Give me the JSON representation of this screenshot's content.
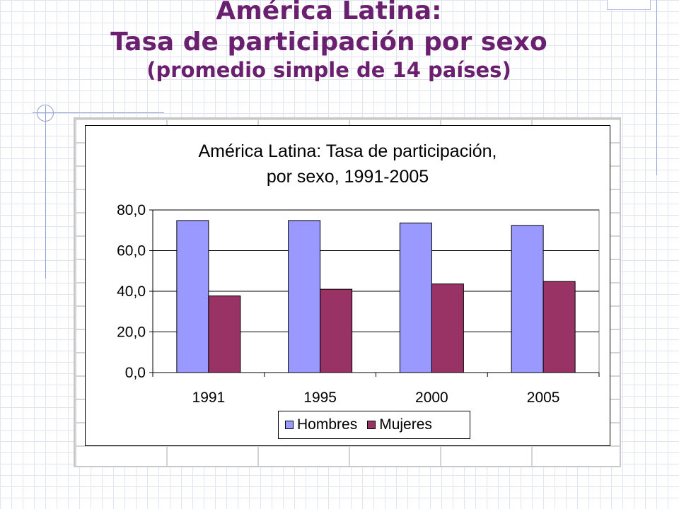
{
  "slide": {
    "title_line1": "América Latina:",
    "title_line2": "Tasa de participación por sexo",
    "title_line3": "(promedio simple de 14 países)"
  },
  "colors": {
    "title": "#6b1f6f",
    "hombres": "#9999ff",
    "mujeres": "#993366",
    "decor": "#8fa0d8"
  },
  "chart_data": {
    "type": "bar",
    "title_line1": "América Latina: Tasa de participación,",
    "title_line2": "por sexo, 1991-2005",
    "categories": [
      "1991",
      "1995",
      "2000",
      "2005"
    ],
    "series": [
      {
        "name": "Hombres",
        "values": [
          74.8,
          74.8,
          73.6,
          72.4
        ]
      },
      {
        "name": "Mujeres",
        "values": [
          37.7,
          41.0,
          43.6,
          44.8
        ]
      }
    ],
    "ylim": [
      0,
      80
    ],
    "yticks": [
      "0,0",
      "20,0",
      "40,0",
      "60,0",
      "80,0"
    ],
    "ytick_values": [
      0,
      20,
      40,
      60,
      80
    ],
    "grid": true,
    "legend_position": "bottom"
  }
}
